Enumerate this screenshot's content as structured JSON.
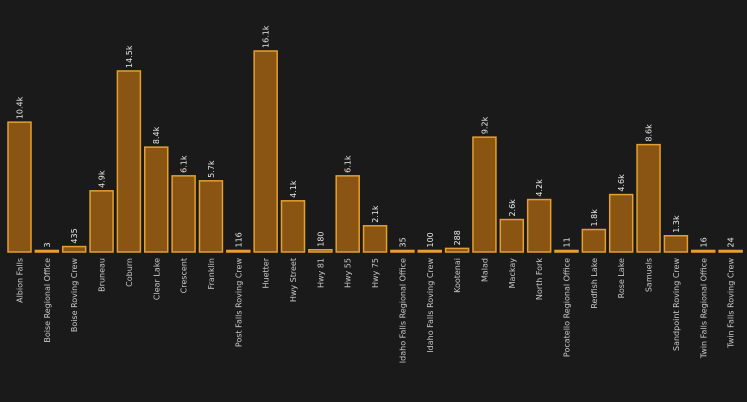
{
  "chart_data": {
    "type": "bar",
    "categories": [
      "Albion Falls",
      "Boise Regional Office",
      "Boise Roving Crew",
      "Bruneau",
      "Coburn",
      "Clear Lake",
      "Crescent",
      "Franklin",
      "Post Falls Roving Crew",
      "Huetter",
      "Hwy Street",
      "Hwy 81",
      "Hwy 55",
      "Hwy 75",
      "Idaho Falls Regional Office",
      "Idaho Falls Roving Crew",
      "Kootenai",
      "Malad",
      "Mackay",
      "North Fork",
      "Pocatello Regional Office",
      "Redfish Lake",
      "Rose Lake",
      "Samuels",
      "Sandpoint Roving Crew",
      "Twin Falls Regional Office",
      "Twin Falls Roving Crew"
    ],
    "values": [
      10400,
      3,
      435,
      4900,
      14500,
      8400,
      6100,
      5700,
      116,
      16100,
      4100,
      180,
      6100,
      2100,
      35,
      100,
      288,
      9200,
      2600,
      4200,
      11,
      1800,
      4600,
      8600,
      1300,
      16,
      24
    ],
    "value_labels": [
      "10.4k",
      "3",
      "435",
      "4.9k",
      "14.5k",
      "8.4k",
      "6.1k",
      "5.7k",
      "116",
      "16.1k",
      "4.1k",
      "180",
      "6.1k",
      "2.1k",
      "35",
      "100",
      "288",
      "9.2k",
      "2.6k",
      "4.2k",
      "11",
      "1.8k",
      "4.6k",
      "8.6k",
      "1.3k",
      "16",
      "24"
    ],
    "color": "#8a5412",
    "edge_color": "#e3a030"
  }
}
